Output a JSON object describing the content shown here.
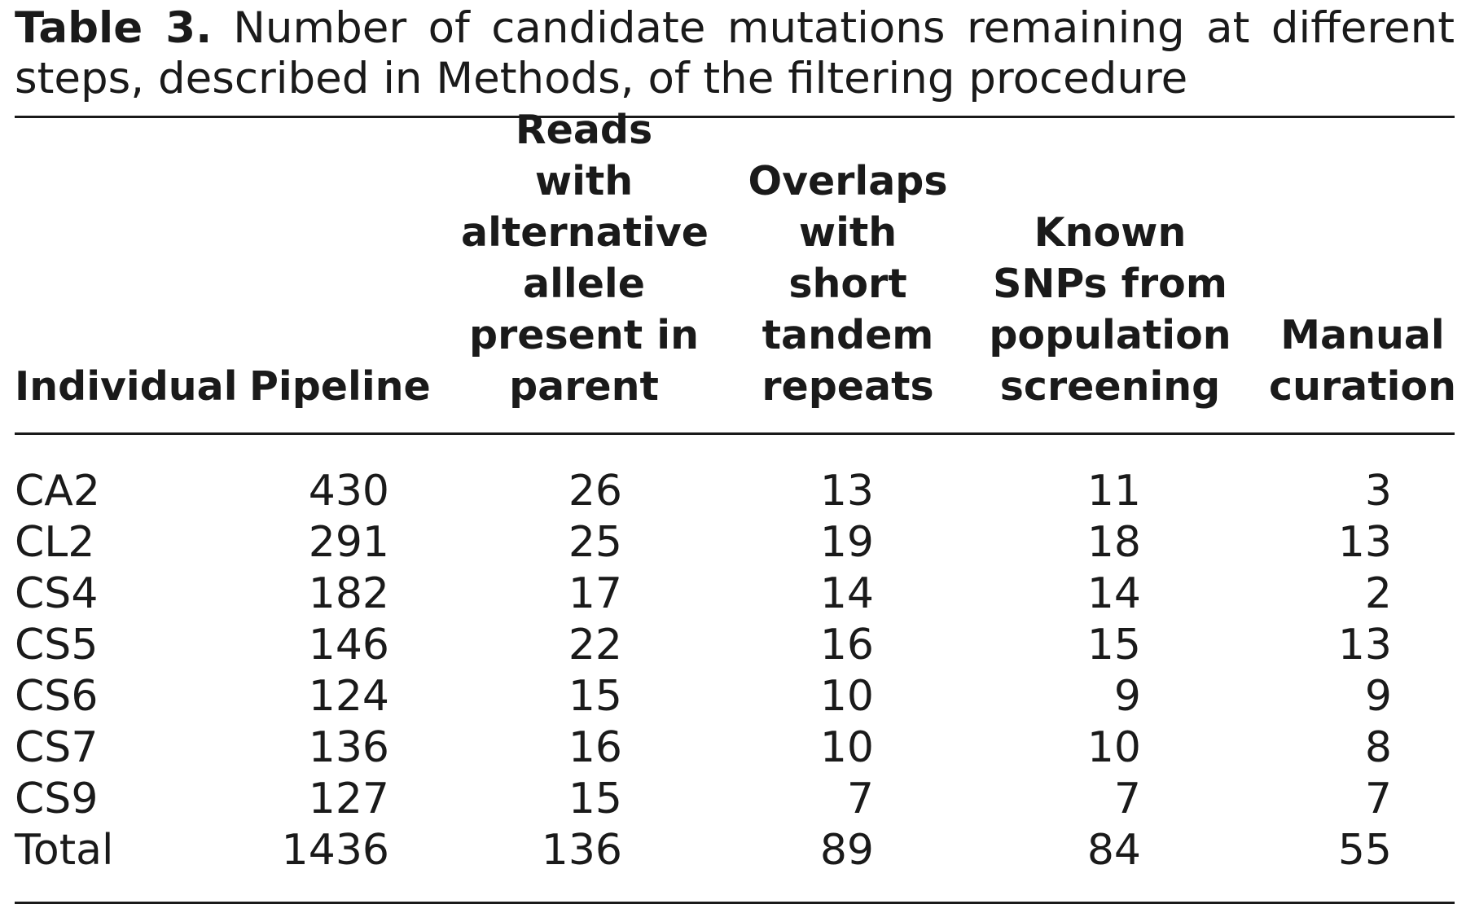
{
  "caption": {
    "label": "Table 3.",
    "text": "Number of candidate mutations remaining at different steps, described in Methods, of the filtering procedure"
  },
  "table": {
    "headers": [
      "Individual",
      "Pipeline",
      "Reads with alternative allele present in parent",
      "Overlaps with short tandem repeats",
      "Known SNPs from population screening",
      "Manual curation"
    ],
    "rows": [
      [
        "CA2",
        "430",
        "26",
        "13",
        "11",
        "3"
      ],
      [
        "CL2",
        "291",
        "25",
        "19",
        "18",
        "13"
      ],
      [
        "CS4",
        "182",
        "17",
        "14",
        "14",
        "2"
      ],
      [
        "CS5",
        "146",
        "22",
        "16",
        "15",
        "13"
      ],
      [
        "CS6",
        "124",
        "15",
        "10",
        "9",
        "9"
      ],
      [
        "CS7",
        "136",
        "16",
        "10",
        "10",
        "8"
      ],
      [
        "CS9",
        "127",
        "15",
        "7",
        "7",
        "7"
      ],
      [
        "Total",
        "1436",
        "136",
        "89",
        "84",
        "55"
      ]
    ]
  }
}
